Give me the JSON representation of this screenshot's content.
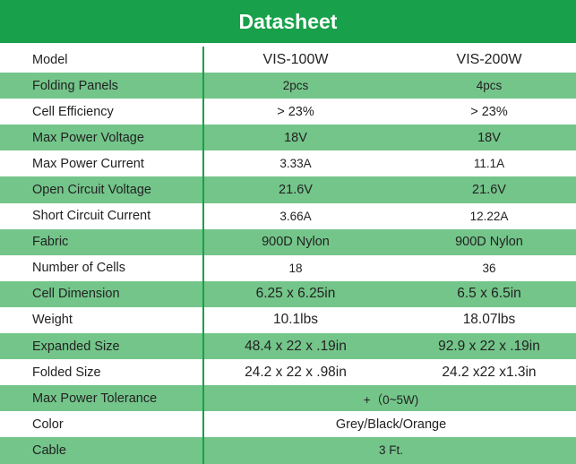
{
  "title": "Datasheet",
  "columns": [
    "VIS-100W",
    "VIS-200W"
  ],
  "rows": [
    {
      "label": "Model",
      "v1": "VIS-100W",
      "v2": "VIS-200W",
      "span": null
    },
    {
      "label": "Folding Panels",
      "v1": "2pcs",
      "v2": "4pcs",
      "span": null
    },
    {
      "label": "Cell Efficiency",
      "v1": "> 23%",
      "v2": "> 23%",
      "span": null
    },
    {
      "label": "Max Power Voltage",
      "v1": "18V",
      "v2": "18V",
      "span": null
    },
    {
      "label": "Max Power Current",
      "v1": "3.33A",
      "v2": "11.1A",
      "span": null
    },
    {
      "label": "Open Circuit Voltage",
      "v1": "21.6V",
      "v2": "21.6V",
      "span": null
    },
    {
      "label": "Short Circuit Current",
      "v1": "3.66A",
      "v2": "12.22A",
      "span": null
    },
    {
      "label": "Fabric",
      "v1": "900D Nylon",
      "v2": "900D Nylon",
      "span": null
    },
    {
      "label": "Number of Cells",
      "v1": "18",
      "v2": "36",
      "span": null
    },
    {
      "label": "Cell Dimension",
      "v1": "6.25 x 6.25in",
      "v2": "6.5 x 6.5in",
      "span": null
    },
    {
      "label": "Weight",
      "v1": "10.1lbs",
      "v2": "18.07lbs",
      "span": null
    },
    {
      "label": "Expanded Size",
      "v1": "48.4 x 22 x .19in",
      "v2": "92.9 x 22 x .19in",
      "span": null
    },
    {
      "label": "Folded Size",
      "v1": "24.2 x 22 x .98in",
      "v2": "24.2 x22 x1.3in",
      "span": null
    },
    {
      "label": "Max Power Tolerance",
      "v1": null,
      "v2": null,
      "span": "+（0~5W)"
    },
    {
      "label": "Color",
      "v1": null,
      "v2": null,
      "span": "Grey/Black/Orange"
    },
    {
      "label": "Cable",
      "v1": null,
      "v2": null,
      "span": "3 Ft."
    }
  ],
  "colors": {
    "header": "#18a04a",
    "shade": "#74c58a",
    "text": "#222222"
  }
}
